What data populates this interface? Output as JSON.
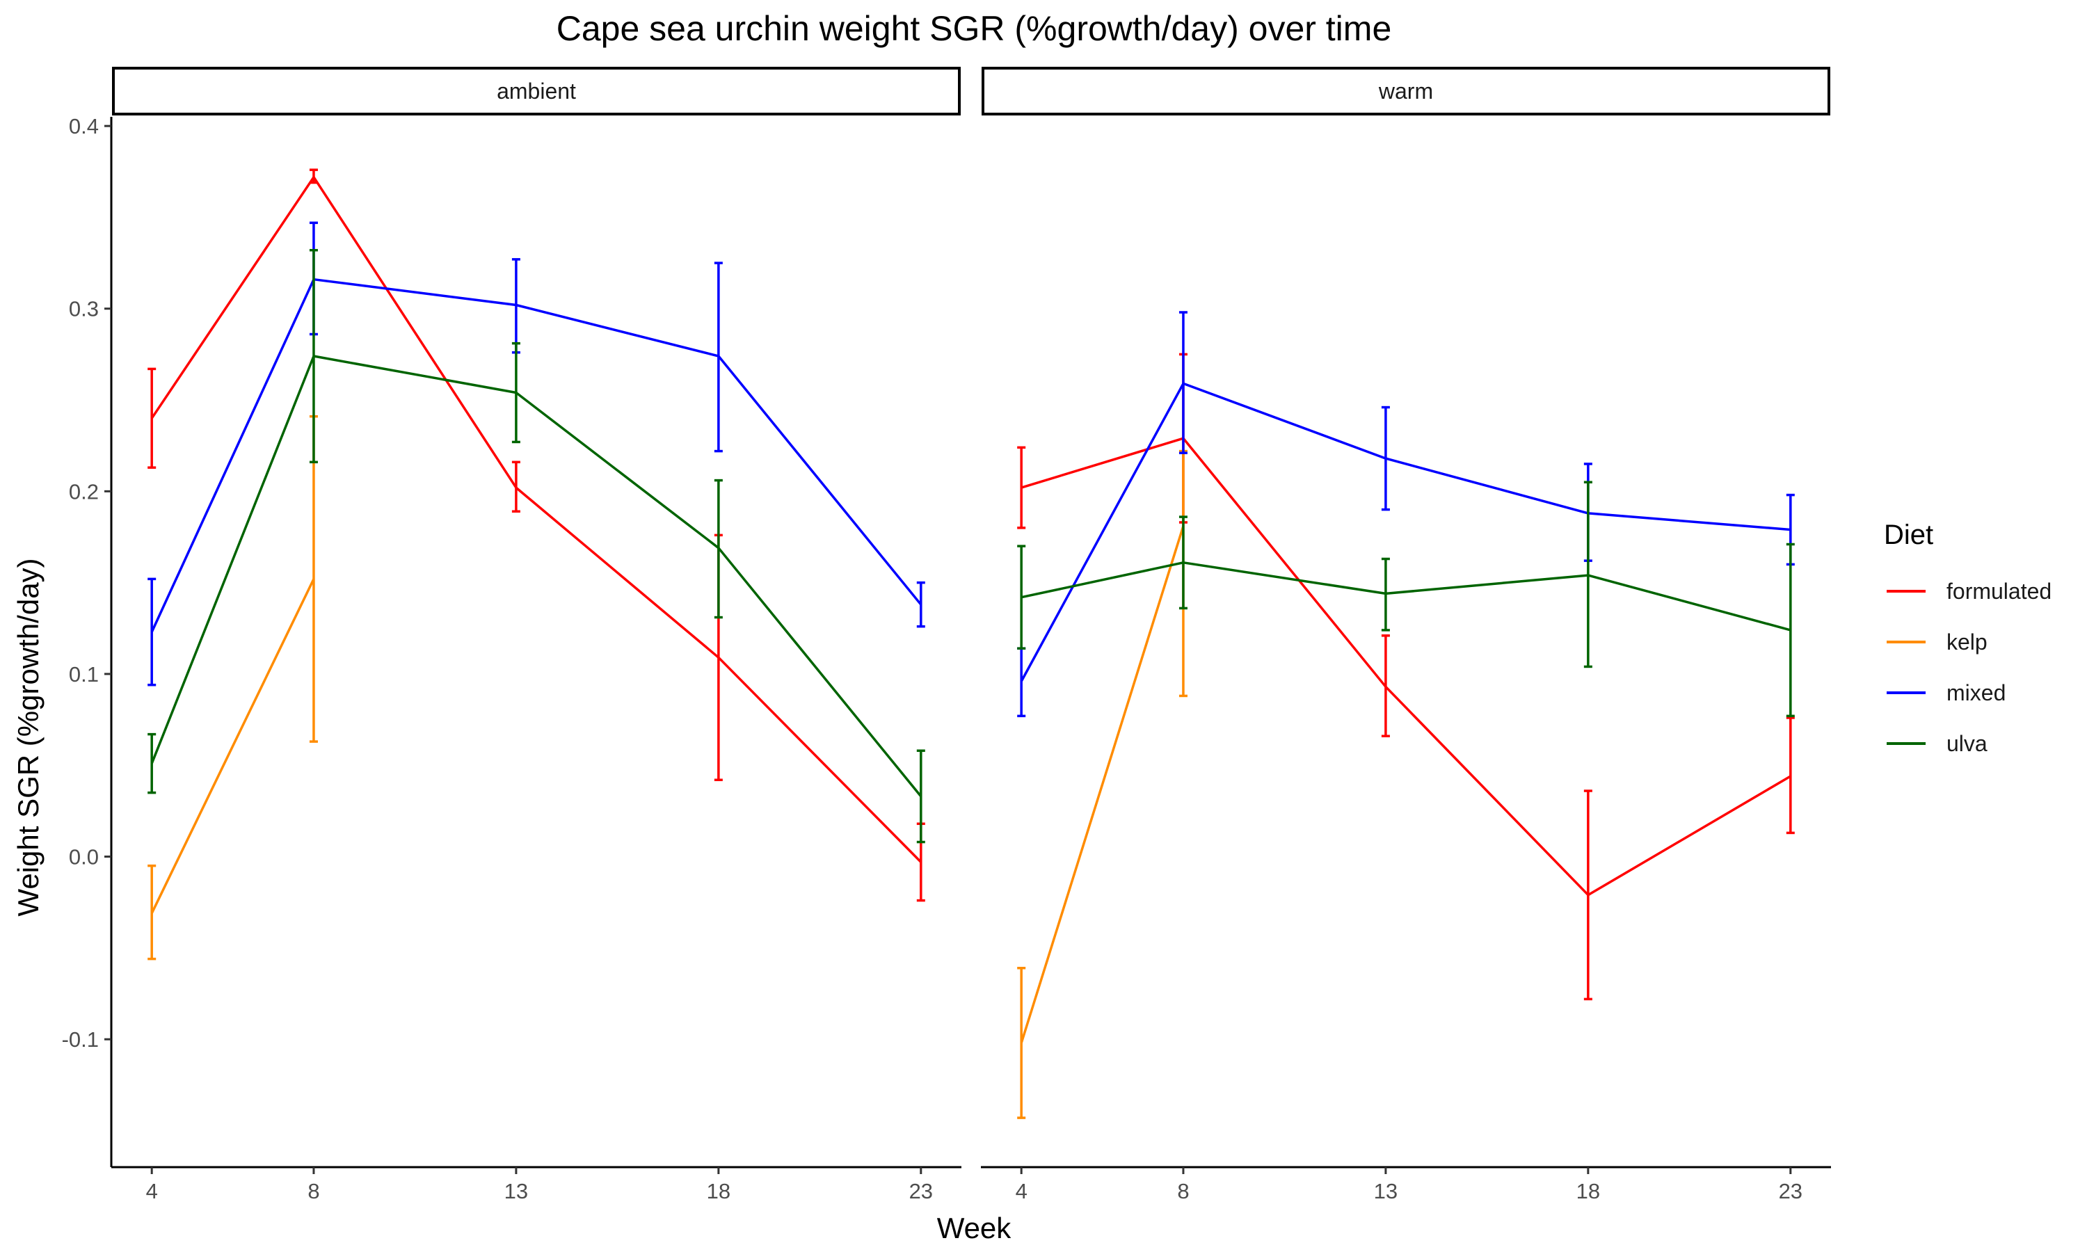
{
  "chart_data": {
    "type": "line",
    "title": "Cape sea urchin weight SGR (%growth/day) over time",
    "xlabel": "Week",
    "ylabel": "Weight SGR (%growth/day)",
    "x_ticks": [
      4,
      8,
      13,
      18,
      23
    ],
    "x_tick_labels": [
      "4",
      "8",
      "13",
      "18",
      "23"
    ],
    "xlim": [
      3,
      24
    ],
    "y_ticks": [
      -0.1,
      0.0,
      0.1,
      0.2,
      0.3,
      0.4
    ],
    "y_tick_labels": [
      "-0.1",
      "0.0",
      "0.1",
      "0.2",
      "0.3",
      "0.4"
    ],
    "ylim": [
      -0.17,
      0.405
    ],
    "grid": false,
    "error_bars": true,
    "legend": {
      "title": "Diet",
      "position": "right",
      "entries": [
        {
          "label": "formulated",
          "color": "#ff0000"
        },
        {
          "label": "kelp",
          "color": "#ff8c00"
        },
        {
          "label": "mixed",
          "color": "#0000ff"
        },
        {
          "label": "ulva",
          "color": "#006400"
        }
      ]
    },
    "panels": [
      {
        "label": "ambient",
        "series": [
          {
            "name": "formulated",
            "color": "#ff0000",
            "points": [
              {
                "x": 4,
                "y": 0.24,
                "ymin": 0.213,
                "ymax": 0.267
              },
              {
                "x": 8,
                "y": 0.372,
                "ymin": 0.369,
                "ymax": 0.376
              },
              {
                "x": 13,
                "y": 0.202,
                "ymin": 0.189,
                "ymax": 0.216
              },
              {
                "x": 18,
                "y": 0.109,
                "ymin": 0.042,
                "ymax": 0.176
              },
              {
                "x": 23,
                "y": -0.003,
                "ymin": -0.024,
                "ymax": 0.018
              }
            ]
          },
          {
            "name": "kelp",
            "color": "#ff8c00",
            "points": [
              {
                "x": 4,
                "y": -0.031,
                "ymin": -0.056,
                "ymax": -0.005
              },
              {
                "x": 8,
                "y": 0.152,
                "ymin": 0.063,
                "ymax": 0.241
              }
            ]
          },
          {
            "name": "mixed",
            "color": "#0000ff",
            "points": [
              {
                "x": 4,
                "y": 0.123,
                "ymin": 0.094,
                "ymax": 0.152
              },
              {
                "x": 8,
                "y": 0.316,
                "ymin": 0.286,
                "ymax": 0.347
              },
              {
                "x": 13,
                "y": 0.302,
                "ymin": 0.276,
                "ymax": 0.327
              },
              {
                "x": 18,
                "y": 0.274,
                "ymin": 0.222,
                "ymax": 0.325
              },
              {
                "x": 23,
                "y": 0.138,
                "ymin": 0.126,
                "ymax": 0.15
              }
            ]
          },
          {
            "name": "ulva",
            "color": "#006400",
            "points": [
              {
                "x": 4,
                "y": 0.051,
                "ymin": 0.035,
                "ymax": 0.067
              },
              {
                "x": 8,
                "y": 0.274,
                "ymin": 0.216,
                "ymax": 0.332
              },
              {
                "x": 13,
                "y": 0.254,
                "ymin": 0.227,
                "ymax": 0.281
              },
              {
                "x": 18,
                "y": 0.169,
                "ymin": 0.131,
                "ymax": 0.206
              },
              {
                "x": 23,
                "y": 0.033,
                "ymin": 0.008,
                "ymax": 0.058
              }
            ]
          }
        ]
      },
      {
        "label": "warm",
        "series": [
          {
            "name": "formulated",
            "color": "#ff0000",
            "points": [
              {
                "x": 4,
                "y": 0.202,
                "ymin": 0.18,
                "ymax": 0.224
              },
              {
                "x": 8,
                "y": 0.229,
                "ymin": 0.183,
                "ymax": 0.275
              },
              {
                "x": 13,
                "y": 0.093,
                "ymin": 0.066,
                "ymax": 0.121
              },
              {
                "x": 18,
                "y": -0.021,
                "ymin": -0.078,
                "ymax": 0.036
              },
              {
                "x": 23,
                "y": 0.044,
                "ymin": 0.013,
                "ymax": 0.076
              }
            ]
          },
          {
            "name": "kelp",
            "color": "#ff8c00",
            "points": [
              {
                "x": 4,
                "y": -0.102,
                "ymin": -0.143,
                "ymax": -0.061
              },
              {
                "x": 8,
                "y": 0.181,
                "ymin": 0.088,
                "ymax": 0.222
              }
            ]
          },
          {
            "name": "mixed",
            "color": "#0000ff",
            "points": [
              {
                "x": 4,
                "y": 0.096,
                "ymin": 0.077,
                "ymax": 0.114
              },
              {
                "x": 8,
                "y": 0.259,
                "ymin": 0.221,
                "ymax": 0.298
              },
              {
                "x": 13,
                "y": 0.218,
                "ymin": 0.19,
                "ymax": 0.246
              },
              {
                "x": 18,
                "y": 0.188,
                "ymin": 0.162,
                "ymax": 0.215
              },
              {
                "x": 23,
                "y": 0.179,
                "ymin": 0.16,
                "ymax": 0.198
              }
            ]
          },
          {
            "name": "ulva",
            "color": "#006400",
            "points": [
              {
                "x": 4,
                "y": 0.142,
                "ymin": 0.114,
                "ymax": 0.17
              },
              {
                "x": 8,
                "y": 0.161,
                "ymin": 0.136,
                "ymax": 0.186
              },
              {
                "x": 13,
                "y": 0.144,
                "ymin": 0.124,
                "ymax": 0.163
              },
              {
                "x": 18,
                "y": 0.154,
                "ymin": 0.104,
                "ymax": 0.205
              },
              {
                "x": 23,
                "y": 0.124,
                "ymin": 0.077,
                "ymax": 0.171
              }
            ]
          }
        ]
      }
    ]
  }
}
